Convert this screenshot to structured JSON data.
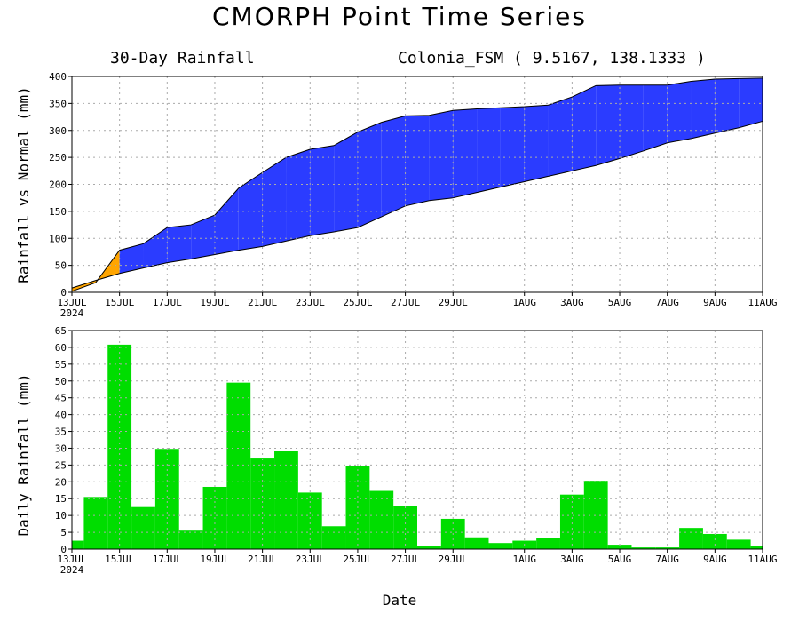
{
  "page": {
    "title": "CMORPH Point Time Series",
    "subtitle_left": "30-Day Rainfall",
    "subtitle_right": "Colonia_FSM ( 9.5167, 138.1333 )",
    "xlabel": "Date"
  },
  "colors": {
    "band_fill": "#2b3cff",
    "band_edge": "#000000",
    "deficit_fill": "#ffa500",
    "bar_fill": "#00dd00",
    "grid": "#aaaaaa"
  },
  "x_tick_labels": [
    "13JUL",
    "15JUL",
    "17JUL",
    "19JUL",
    "21JUL",
    "23JUL",
    "25JUL",
    "27JUL",
    "29JUL",
    "1AUG",
    "3AUG",
    "5AUG",
    "7AUG",
    "9AUG",
    "11AUG"
  ],
  "x_tick_year": "2024",
  "chart_data": [
    {
      "type": "area",
      "ylabel": "Rainfall vs Normal (mm)",
      "ylim": [
        0,
        400
      ],
      "yticks": [
        "0",
        "50",
        "100",
        "150",
        "200",
        "250",
        "300",
        "350",
        "400"
      ],
      "grid": true,
      "x": [
        "2024-07-13",
        "2024-07-14",
        "2024-07-15",
        "2024-07-16",
        "2024-07-17",
        "2024-07-18",
        "2024-07-19",
        "2024-07-20",
        "2024-07-21",
        "2024-07-22",
        "2024-07-23",
        "2024-07-24",
        "2024-07-25",
        "2024-07-26",
        "2024-07-27",
        "2024-07-28",
        "2024-07-29",
        "2024-07-30",
        "2024-07-31",
        "2024-08-01",
        "2024-08-02",
        "2024-08-03",
        "2024-08-04",
        "2024-08-05",
        "2024-08-06",
        "2024-08-07",
        "2024-08-08",
        "2024-08-09",
        "2024-08-10",
        "2024-08-11"
      ],
      "series": [
        {
          "values": [
            2,
            18,
            78,
            90,
            120,
            125,
            143,
            193,
            222,
            250,
            265,
            272,
            297,
            315,
            327,
            328,
            337,
            340,
            342,
            344,
            347,
            362,
            383,
            384,
            384,
            384,
            391,
            395,
            396,
            397
          ]
        },
        {
          "values": [
            8,
            22,
            35,
            45,
            55,
            62,
            70,
            78,
            85,
            95,
            105,
            112,
            120,
            140,
            160,
            170,
            175,
            185,
            195,
            205,
            215,
            225,
            235,
            248,
            262,
            277,
            285,
            295,
            305,
            317
          ]
        }
      ]
    },
    {
      "type": "bar",
      "ylabel": "Daily Rainfall (mm)",
      "ylim": [
        0,
        65
      ],
      "yticks": [
        "0",
        "5",
        "10",
        "15",
        "20",
        "25",
        "30",
        "35",
        "40",
        "45",
        "50",
        "55",
        "60",
        "65"
      ],
      "grid": true,
      "x": [
        "2024-07-13",
        "2024-07-14",
        "2024-07-15",
        "2024-07-16",
        "2024-07-17",
        "2024-07-18",
        "2024-07-19",
        "2024-07-20",
        "2024-07-21",
        "2024-07-22",
        "2024-07-23",
        "2024-07-24",
        "2024-07-25",
        "2024-07-26",
        "2024-07-27",
        "2024-07-28",
        "2024-07-29",
        "2024-07-30",
        "2024-07-31",
        "2024-08-01",
        "2024-08-02",
        "2024-08-03",
        "2024-08-04",
        "2024-08-05",
        "2024-08-06",
        "2024-08-07",
        "2024-08-08",
        "2024-08-09",
        "2024-08-10",
        "2024-08-11"
      ],
      "values": [
        2.5,
        15.5,
        60.8,
        12.5,
        29.8,
        5.5,
        18.5,
        49.5,
        27.2,
        29.3,
        16.8,
        6.8,
        24.7,
        17.3,
        12.8,
        1.0,
        9.0,
        3.5,
        1.8,
        2.5,
        3.3,
        16.2,
        20.3,
        1.3,
        0.5,
        0.5,
        6.3,
        4.5,
        2.8,
        1.0
      ]
    }
  ]
}
